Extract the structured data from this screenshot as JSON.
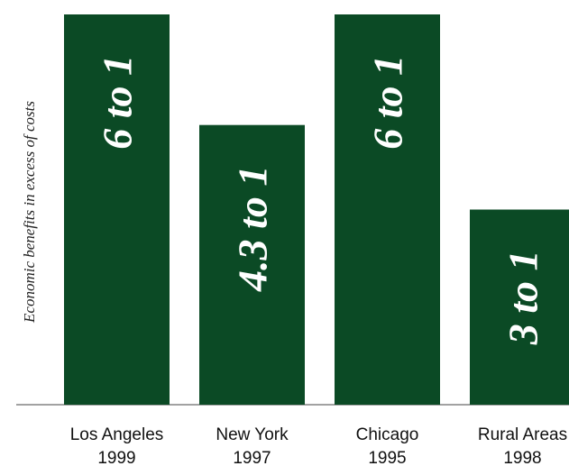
{
  "chart_data": {
    "type": "bar",
    "y_label": "Economic benefits in excess of costs",
    "categories": [
      [
        "Los Angeles",
        "1999"
      ],
      [
        "New York",
        "1997"
      ],
      [
        "Chicago",
        "1995"
      ],
      [
        "Rural Areas",
        "1998"
      ]
    ],
    "values": [
      6,
      4.3,
      6,
      3
    ],
    "value_labels": [
      "6 to 1",
      "4.3 to 1",
      "6 to 1",
      "3 to 1"
    ],
    "color": "#0b4a25",
    "ylim": [
      0,
      6
    ]
  }
}
